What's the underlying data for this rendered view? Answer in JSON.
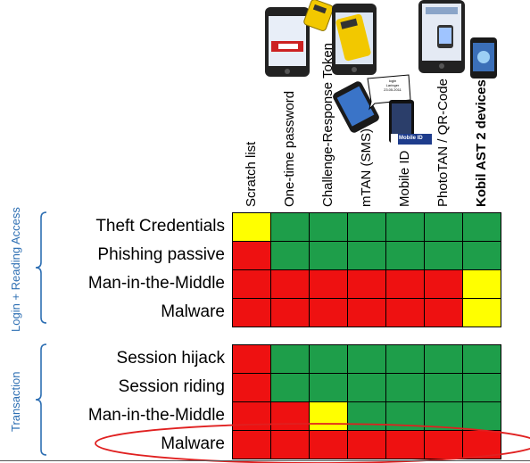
{
  "colors": {
    "green": "#1e9e4a",
    "red": "#ee1111",
    "yellow": "#ffff00",
    "group_text": "#2e6fb3",
    "highlight_ellipse": "#e02020"
  },
  "columns": [
    "Scratch list",
    "One-time password",
    "Challenge-Response Token",
    "mTAN (SMS)",
    "Mobile ID",
    "PhotoTAN / QR-Code",
    "Kobil AST 2 devices"
  ],
  "groups": [
    {
      "label": "Login + Reading Access",
      "rows": [
        {
          "label": "Theft Credentials",
          "cells": [
            "yellow",
            "green",
            "green",
            "green",
            "green",
            "green",
            "green"
          ]
        },
        {
          "label": "Phishing passive",
          "cells": [
            "red",
            "green",
            "green",
            "green",
            "green",
            "green",
            "green"
          ]
        },
        {
          "label": "Man-in-the-Middle",
          "cells": [
            "red",
            "red",
            "red",
            "red",
            "red",
            "red",
            "yellow"
          ]
        },
        {
          "label": "Malware",
          "cells": [
            "red",
            "red",
            "red",
            "red",
            "red",
            "red",
            "yellow"
          ]
        }
      ]
    },
    {
      "label": "Transaction",
      "rows": [
        {
          "label": "Session hijack",
          "cells": [
            "red",
            "green",
            "green",
            "green",
            "green",
            "green",
            "green"
          ]
        },
        {
          "label": "Session riding",
          "cells": [
            "red",
            "green",
            "green",
            "green",
            "green",
            "green",
            "green"
          ]
        },
        {
          "label": "Man-in-the-Middle",
          "cells": [
            "red",
            "red",
            "yellow",
            "green",
            "green",
            "green",
            "green"
          ]
        },
        {
          "label": "Malware",
          "cells": [
            "red",
            "red",
            "red",
            "red",
            "red",
            "red",
            "red"
          ]
        }
      ]
    }
  ],
  "device_icons": [
    "smartphone-otp-icon",
    "token-device-icon",
    "smartphone-token-icon",
    "sms-phone-icon",
    "mobile-id-phone-icon",
    "phototan-phone-icon",
    "kobil-device-icon"
  ],
  "sms_bubble_text": "login\nLaringer\n23.05.2011",
  "mobile_id_badge": "Mobile ID"
}
